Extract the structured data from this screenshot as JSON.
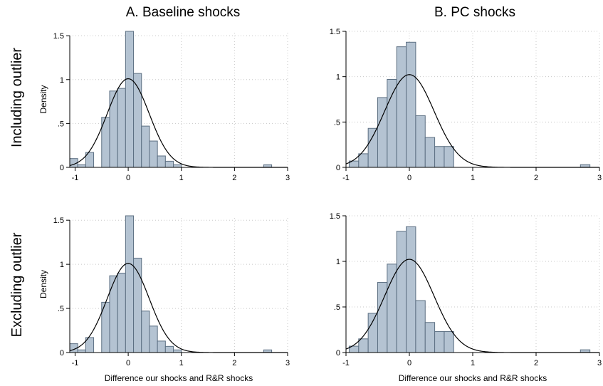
{
  "column_titles": [
    "A. Baseline shocks",
    "B. PC shocks"
  ],
  "row_titles": [
    "Including outlier",
    "Excluding outlier"
  ],
  "chart_data": [
    {
      "type": "bar",
      "panel": "A. Baseline shocks / Including outlier",
      "ylabel": "Density",
      "xlabel": "",
      "xlim": [
        -1.1,
        3
      ],
      "ylim": [
        0,
        1.55
      ],
      "xticks": [
        "-1",
        "0",
        "1",
        "2",
        "3"
      ],
      "yticks": [
        "0",
        ".5",
        "1",
        "1.5"
      ],
      "grid": true,
      "bins": [
        {
          "x0": -1.1,
          "x1": -0.95,
          "y": 0.1
        },
        {
          "x0": -0.95,
          "x1": -0.8,
          "y": 0.03
        },
        {
          "x0": -0.8,
          "x1": -0.65,
          "y": 0.17
        },
        {
          "x0": -0.65,
          "x1": -0.5,
          "y": 0.0
        },
        {
          "x0": -0.5,
          "x1": -0.35,
          "y": 0.57
        },
        {
          "x0": -0.35,
          "x1": -0.2,
          "y": 0.87
        },
        {
          "x0": -0.2,
          "x1": -0.05,
          "y": 0.9
        },
        {
          "x0": -0.05,
          "x1": 0.1,
          "y": 1.55
        },
        {
          "x0": 0.1,
          "x1": 0.25,
          "y": 1.07
        },
        {
          "x0": 0.25,
          "x1": 0.4,
          "y": 0.47
        },
        {
          "x0": 0.4,
          "x1": 0.55,
          "y": 0.3
        },
        {
          "x0": 0.55,
          "x1": 0.7,
          "y": 0.13
        },
        {
          "x0": 0.7,
          "x1": 0.85,
          "y": 0.07
        },
        {
          "x0": 0.85,
          "x1": 1.0,
          "y": 0.03
        },
        {
          "x0": 2.55,
          "x1": 2.7,
          "y": 0.03
        }
      ],
      "density_curve": {
        "mean": 0.0,
        "sd": 0.395
      }
    },
    {
      "type": "bar",
      "panel": "B. PC shocks / Including outlier",
      "ylabel": "",
      "xlabel": "",
      "xlim": [
        -1,
        3
      ],
      "ylim": [
        0,
        1.5
      ],
      "xticks": [
        "-1",
        "0",
        "1",
        "2",
        "3"
      ],
      "yticks": [
        "0",
        ".5",
        "1",
        "1.5"
      ],
      "grid": true,
      "bins": [
        {
          "x0": -0.95,
          "x1": -0.8,
          "y": 0.07
        },
        {
          "x0": -0.8,
          "x1": -0.65,
          "y": 0.15
        },
        {
          "x0": -0.65,
          "x1": -0.5,
          "y": 0.43
        },
        {
          "x0": -0.5,
          "x1": -0.35,
          "y": 0.77
        },
        {
          "x0": -0.35,
          "x1": -0.2,
          "y": 0.97
        },
        {
          "x0": -0.2,
          "x1": -0.05,
          "y": 1.33
        },
        {
          "x0": -0.05,
          "x1": 0.1,
          "y": 1.38
        },
        {
          "x0": 0.1,
          "x1": 0.25,
          "y": 0.57
        },
        {
          "x0": 0.25,
          "x1": 0.4,
          "y": 0.33
        },
        {
          "x0": 0.4,
          "x1": 0.55,
          "y": 0.23
        },
        {
          "x0": 0.55,
          "x1": 0.7,
          "y": 0.23
        },
        {
          "x0": 2.7,
          "x1": 2.85,
          "y": 0.03
        }
      ],
      "density_curve": {
        "mean": 0.0,
        "sd": 0.39
      }
    },
    {
      "type": "bar",
      "panel": "A. Baseline shocks / Excluding outlier",
      "ylabel": "Density",
      "xlabel": "Difference our shocks and R&R shocks",
      "xlim": [
        -1.1,
        3
      ],
      "ylim": [
        0,
        1.55
      ],
      "xticks": [
        "-1",
        "0",
        "1",
        "2",
        "3"
      ],
      "yticks": [
        "0",
        ".5",
        "1",
        "1.5"
      ],
      "grid": true,
      "bins": [
        {
          "x0": -1.1,
          "x1": -0.95,
          "y": 0.1
        },
        {
          "x0": -0.95,
          "x1": -0.8,
          "y": 0.03
        },
        {
          "x0": -0.8,
          "x1": -0.65,
          "y": 0.17
        },
        {
          "x0": -0.65,
          "x1": -0.5,
          "y": 0.0
        },
        {
          "x0": -0.5,
          "x1": -0.35,
          "y": 0.57
        },
        {
          "x0": -0.35,
          "x1": -0.2,
          "y": 0.87
        },
        {
          "x0": -0.2,
          "x1": -0.05,
          "y": 0.9
        },
        {
          "x0": -0.05,
          "x1": 0.1,
          "y": 1.55
        },
        {
          "x0": 0.1,
          "x1": 0.25,
          "y": 1.07
        },
        {
          "x0": 0.25,
          "x1": 0.4,
          "y": 0.47
        },
        {
          "x0": 0.4,
          "x1": 0.55,
          "y": 0.3
        },
        {
          "x0": 0.55,
          "x1": 0.7,
          "y": 0.13
        },
        {
          "x0": 0.7,
          "x1": 0.85,
          "y": 0.07
        },
        {
          "x0": 0.85,
          "x1": 1.0,
          "y": 0.03
        },
        {
          "x0": 2.55,
          "x1": 2.7,
          "y": 0.03
        }
      ],
      "density_curve": {
        "mean": 0.0,
        "sd": 0.395
      }
    },
    {
      "type": "bar",
      "panel": "B. PC shocks / Excluding outlier",
      "ylabel": "",
      "xlabel": "Difference our shocks and R&R shocks",
      "xlim": [
        -1,
        3
      ],
      "ylim": [
        0,
        1.5
      ],
      "xticks": [
        "-1",
        "0",
        "1",
        "2",
        "3"
      ],
      "yticks": [
        "0",
        ".5",
        "1",
        "1.5"
      ],
      "grid": true,
      "bins": [
        {
          "x0": -0.95,
          "x1": -0.8,
          "y": 0.07
        },
        {
          "x0": -0.8,
          "x1": -0.65,
          "y": 0.15
        },
        {
          "x0": -0.65,
          "x1": -0.5,
          "y": 0.43
        },
        {
          "x0": -0.5,
          "x1": -0.35,
          "y": 0.77
        },
        {
          "x0": -0.35,
          "x1": -0.2,
          "y": 0.97
        },
        {
          "x0": -0.2,
          "x1": -0.05,
          "y": 1.33
        },
        {
          "x0": -0.05,
          "x1": 0.1,
          "y": 1.38
        },
        {
          "x0": 0.1,
          "x1": 0.25,
          "y": 0.57
        },
        {
          "x0": 0.25,
          "x1": 0.4,
          "y": 0.33
        },
        {
          "x0": 0.4,
          "x1": 0.55,
          "y": 0.23
        },
        {
          "x0": 0.55,
          "x1": 0.7,
          "y": 0.23
        },
        {
          "x0": 2.7,
          "x1": 2.85,
          "y": 0.03
        }
      ],
      "density_curve": {
        "mean": 0.0,
        "sd": 0.39
      }
    }
  ]
}
